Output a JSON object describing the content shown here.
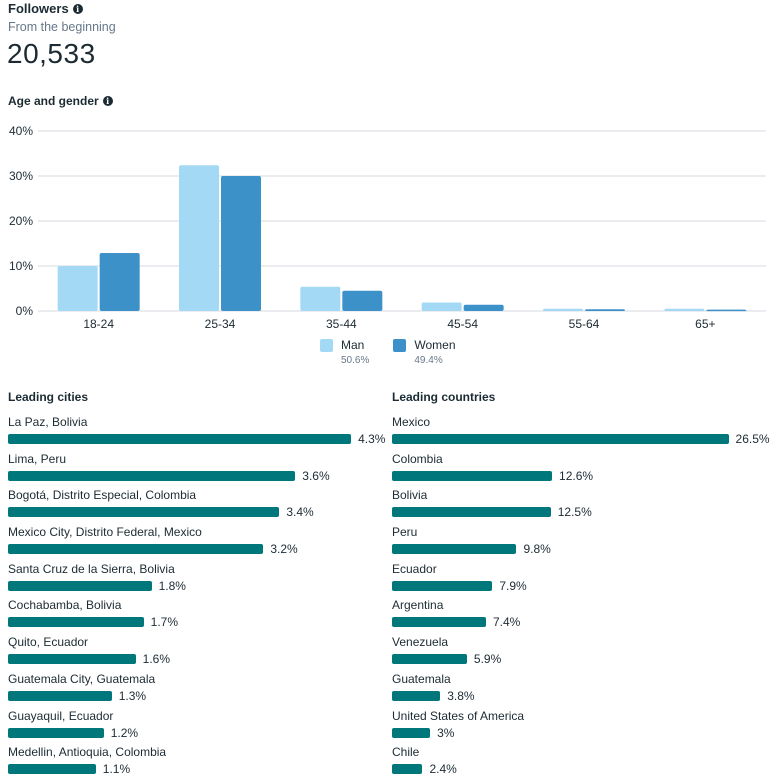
{
  "header": {
    "title": "Followers",
    "subtitle": "From the beginning",
    "total": "20,533"
  },
  "age_gender": {
    "title": "Age and gender",
    "legend": [
      {
        "label": "Man",
        "percent": "50.6%",
        "color": "#a4d9f5"
      },
      {
        "label": "Women",
        "percent": "49.4%",
        "color": "#3d91c9"
      }
    ]
  },
  "chart_data": [
    {
      "type": "bar",
      "title": "Age and gender",
      "xlabel": "",
      "ylabel": "",
      "categories": [
        "18-24",
        "25-34",
        "35-44",
        "45-54",
        "55-64",
        "65+"
      ],
      "series": [
        {
          "name": "Man",
          "values": [
            10.0,
            32.4,
            5.4,
            1.9,
            0.5,
            0.5
          ]
        },
        {
          "name": "Women",
          "values": [
            12.9,
            30.0,
            4.5,
            1.4,
            0.4,
            0.3
          ]
        }
      ],
      "ylim": [
        0,
        40
      ],
      "yticks": [
        "0%",
        "10%",
        "20%",
        "30%",
        "40%"
      ],
      "ytick_values": [
        0,
        10,
        20,
        30,
        40
      ],
      "grid": true,
      "legend_position": "bottom-center"
    },
    {
      "type": "bar",
      "orientation": "horizontal",
      "title": "Leading cities",
      "categories": [
        "La Paz, Bolivia",
        "Lima, Peru",
        "Bogotá, Distrito Especial, Colombia",
        "Mexico City, Distrito Federal, Mexico",
        "Santa Cruz de la Sierra, Bolivia",
        "Cochabamba, Bolivia",
        "Quito, Ecuador",
        "Guatemala City, Guatemala",
        "Guayaquil, Ecuador",
        "Medellin, Antioquia, Colombia"
      ],
      "values": [
        4.3,
        3.6,
        3.4,
        3.2,
        1.8,
        1.7,
        1.6,
        1.3,
        1.2,
        1.1
      ],
      "labels": [
        "4.3%",
        "3.6%",
        "3.4%",
        "3.2%",
        "1.8%",
        "1.7%",
        "1.6%",
        "1.3%",
        "1.2%",
        "1.1%"
      ],
      "color": "#00777a"
    },
    {
      "type": "bar",
      "orientation": "horizontal",
      "title": "Leading countries",
      "categories": [
        "Mexico",
        "Colombia",
        "Bolivia",
        "Peru",
        "Ecuador",
        "Argentina",
        "Venezuela",
        "Guatemala",
        "United States of America",
        "Chile"
      ],
      "values": [
        26.5,
        12.6,
        12.5,
        9.8,
        7.9,
        7.4,
        5.9,
        3.8,
        3.0,
        2.4
      ],
      "labels": [
        "26.5%",
        "12.6%",
        "12.5%",
        "9.8%",
        "7.9%",
        "7.4%",
        "5.9%",
        "3.8%",
        "3%",
        "2.4%"
      ],
      "color": "#00777a"
    }
  ]
}
